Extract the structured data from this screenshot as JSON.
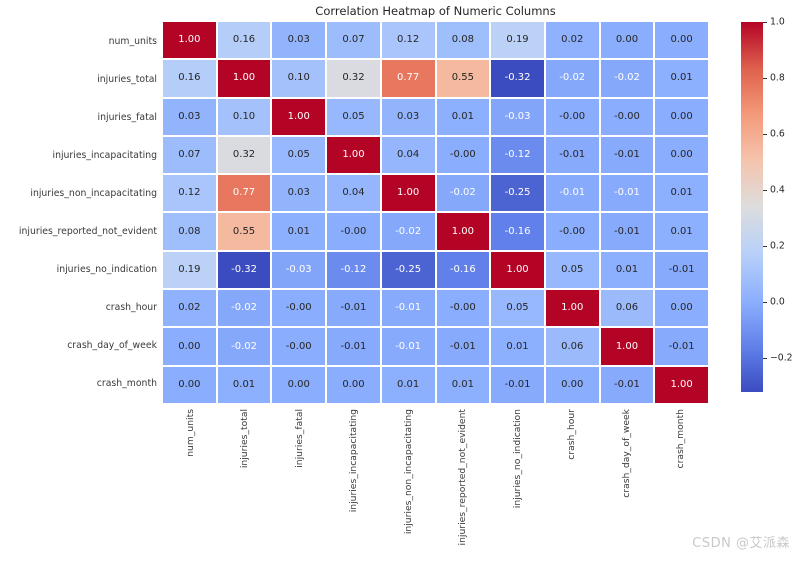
{
  "title": "Correlation Heatmap of Numeric Columns",
  "watermark": "CSDN @艾派森",
  "chart_data": {
    "type": "heatmap",
    "title": "Correlation Heatmap of Numeric Columns",
    "labels": [
      "num_units",
      "injuries_total",
      "injuries_fatal",
      "injuries_incapacitating",
      "injuries_non_incapacitating",
      "injuries_reported_not_evident",
      "injuries_no_indication",
      "crash_hour",
      "crash_day_of_week",
      "crash_month"
    ],
    "matrix": [
      [
        "1.00",
        "0.16",
        "0.03",
        "0.07",
        "0.12",
        "0.08",
        "0.19",
        "0.02",
        "0.00",
        "0.00"
      ],
      [
        "0.16",
        "1.00",
        "0.10",
        "0.32",
        "0.77",
        "0.55",
        "-0.32",
        "-0.02",
        "-0.02",
        "0.01"
      ],
      [
        "0.03",
        "0.10",
        "1.00",
        "0.05",
        "0.03",
        "0.01",
        "-0.03",
        "-0.00",
        "-0.00",
        "0.00"
      ],
      [
        "0.07",
        "0.32",
        "0.05",
        "1.00",
        "0.04",
        "-0.00",
        "-0.12",
        "-0.01",
        "-0.01",
        "0.00"
      ],
      [
        "0.12",
        "0.77",
        "0.03",
        "0.04",
        "1.00",
        "-0.02",
        "-0.25",
        "-0.01",
        "-0.01",
        "0.01"
      ],
      [
        "0.08",
        "0.55",
        "0.01",
        "-0.00",
        "-0.02",
        "1.00",
        "-0.16",
        "-0.00",
        "-0.01",
        "0.01"
      ],
      [
        "0.19",
        "-0.32",
        "-0.03",
        "-0.12",
        "-0.25",
        "-0.16",
        "1.00",
        "0.05",
        "0.01",
        "-0.01"
      ],
      [
        "0.02",
        "-0.02",
        "-0.00",
        "-0.01",
        "-0.01",
        "-0.00",
        "0.05",
        "1.00",
        "0.06",
        "0.00"
      ],
      [
        "0.00",
        "-0.02",
        "-0.00",
        "-0.01",
        "-0.01",
        "-0.01",
        "0.01",
        "0.06",
        "1.00",
        "-0.01"
      ],
      [
        "0.00",
        "0.01",
        "0.00",
        "0.00",
        "0.01",
        "0.01",
        "-0.01",
        "0.00",
        "-0.01",
        "1.00"
      ]
    ],
    "white_text_mask": [
      [
        1,
        0,
        0,
        0,
        0,
        0,
        0,
        0,
        0,
        0
      ],
      [
        0,
        1,
        0,
        0,
        1,
        0,
        1,
        1,
        1,
        0
      ],
      [
        0,
        0,
        1,
        0,
        0,
        0,
        1,
        0,
        0,
        0
      ],
      [
        0,
        0,
        0,
        1,
        0,
        0,
        1,
        0,
        0,
        0
      ],
      [
        0,
        1,
        0,
        0,
        1,
        1,
        1,
        1,
        1,
        0
      ],
      [
        0,
        0,
        0,
        0,
        1,
        1,
        1,
        0,
        0,
        0
      ],
      [
        0,
        1,
        1,
        1,
        1,
        1,
        1,
        0,
        0,
        0
      ],
      [
        0,
        1,
        0,
        0,
        1,
        0,
        0,
        1,
        0,
        0
      ],
      [
        0,
        1,
        0,
        0,
        1,
        0,
        0,
        0,
        1,
        0
      ],
      [
        0,
        0,
        0,
        0,
        0,
        0,
        0,
        0,
        0,
        1
      ]
    ],
    "colormap": "coolwarm",
    "vmin": -0.32,
    "vmax": 1.0,
    "grid_line_color": "#ffffff",
    "cell_text_dark": "#262626",
    "cell_text_light": "#ffffff",
    "colormap_anchors": [
      {
        "t": 0.0,
        "color": "#3b4cc0"
      },
      {
        "t": 0.125,
        "color": "#6282ea"
      },
      {
        "t": 0.25,
        "color": "#8db0fe"
      },
      {
        "t": 0.375,
        "color": "#b8d0f9"
      },
      {
        "t": 0.5,
        "color": "#dddddd"
      },
      {
        "t": 0.625,
        "color": "#f5c4ad"
      },
      {
        "t": 0.75,
        "color": "#f49a7b"
      },
      {
        "t": 0.875,
        "color": "#de604d"
      },
      {
        "t": 1.0,
        "color": "#b40426"
      }
    ],
    "colorbar_ticks": [
      {
        "label": "1.0",
        "value": 1.0
      },
      {
        "label": "0.8",
        "value": 0.8
      },
      {
        "label": "0.6",
        "value": 0.6
      },
      {
        "label": "0.4",
        "value": 0.4
      },
      {
        "label": "0.2",
        "value": 0.2
      },
      {
        "label": "0.0",
        "value": 0.0
      },
      {
        "label": "−0.2",
        "value": -0.2
      }
    ],
    "legend_position": "right"
  }
}
